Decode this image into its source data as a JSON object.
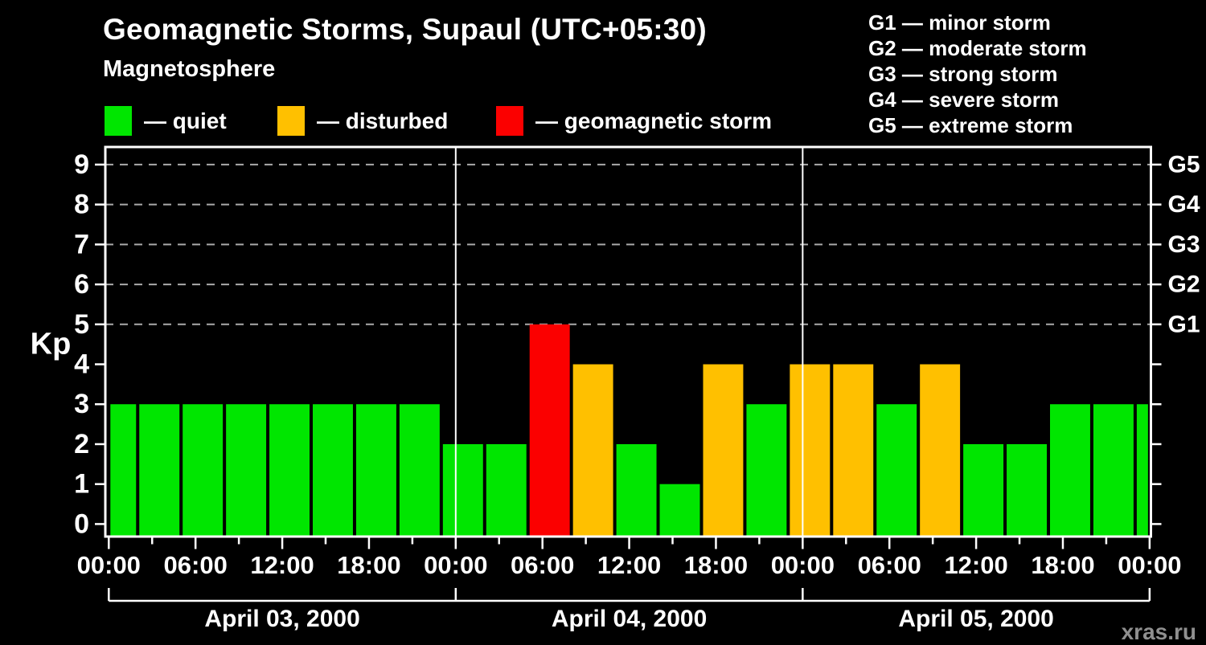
{
  "header": {
    "title": "Geomagnetic Storms, Supaul (UTC+05:30)",
    "subtitle": "Magnetosphere"
  },
  "legend": {
    "items": [
      {
        "key": "quiet",
        "label": "— quiet"
      },
      {
        "key": "disturbed",
        "label": "— disturbed"
      },
      {
        "key": "storm",
        "label": "— geomagnetic storm"
      }
    ]
  },
  "g_scale_legend": {
    "items": [
      "G1 — minor storm",
      "G2 — moderate storm",
      "G3 — strong storm",
      "G4 — severe storm",
      "G5 — extreme storm"
    ]
  },
  "colors": {
    "quiet": "#00e600",
    "disturbed": "#ffc000",
    "storm": "#fb0000",
    "axis": "#ffffff",
    "grid": "#aaaaaa",
    "watermark": "#8f8f8f"
  },
  "watermark": {
    "label": "xras.ru"
  },
  "chart_data": {
    "type": "bar",
    "title": "Geomagnetic Storms, Supaul (UTC+05:30)",
    "ylabel": "Kp",
    "y_ticks": [
      0,
      1,
      2,
      3,
      4,
      5,
      6,
      7,
      8,
      9
    ],
    "y_range_kp": [
      0,
      9
    ],
    "grid_kp_levels": [
      5,
      6,
      7,
      8,
      9
    ],
    "right_axis_labels": [
      {
        "kp": 5,
        "label": "G1"
      },
      {
        "kp": 6,
        "label": "G2"
      },
      {
        "kp": 7,
        "label": "G3"
      },
      {
        "kp": 8,
        "label": "G4"
      },
      {
        "kp": 9,
        "label": "G5"
      }
    ],
    "hours_total": 72,
    "x_tick_step_hours": 3,
    "x_label_step_hours": 6,
    "x_tick_labels_cycle": [
      "00:00",
      "06:00",
      "12:00",
      "18:00"
    ],
    "days": [
      {
        "label": "April 03, 2000",
        "start_hour": 0,
        "end_hour": 24
      },
      {
        "label": "April 04, 2000",
        "start_hour": 24,
        "end_hour": 48
      },
      {
        "label": "April 05, 2000",
        "start_hour": 48,
        "end_hour": 72
      }
    ],
    "day_divider_hours": [
      24,
      48
    ],
    "segments": [
      {
        "start": 0,
        "end": 2,
        "kp": 3,
        "status": "quiet"
      },
      {
        "start": 2,
        "end": 5,
        "kp": 3,
        "status": "quiet"
      },
      {
        "start": 5,
        "end": 8,
        "kp": 3,
        "status": "quiet"
      },
      {
        "start": 8,
        "end": 11,
        "kp": 3,
        "status": "quiet"
      },
      {
        "start": 11,
        "end": 14,
        "kp": 3,
        "status": "quiet"
      },
      {
        "start": 14,
        "end": 17,
        "kp": 3,
        "status": "quiet"
      },
      {
        "start": 17,
        "end": 20,
        "kp": 3,
        "status": "quiet"
      },
      {
        "start": 20,
        "end": 23,
        "kp": 3,
        "status": "quiet"
      },
      {
        "start": 23,
        "end": 26,
        "kp": 2,
        "status": "quiet"
      },
      {
        "start": 26,
        "end": 29,
        "kp": 2,
        "status": "quiet"
      },
      {
        "start": 29,
        "end": 32,
        "kp": 5,
        "status": "storm"
      },
      {
        "start": 32,
        "end": 35,
        "kp": 4,
        "status": "disturbed"
      },
      {
        "start": 35,
        "end": 38,
        "kp": 2,
        "status": "quiet"
      },
      {
        "start": 38,
        "end": 41,
        "kp": 1,
        "status": "quiet"
      },
      {
        "start": 41,
        "end": 44,
        "kp": 4,
        "status": "disturbed"
      },
      {
        "start": 44,
        "end": 47,
        "kp": 3,
        "status": "quiet"
      },
      {
        "start": 47,
        "end": 50,
        "kp": 4,
        "status": "disturbed"
      },
      {
        "start": 50,
        "end": 53,
        "kp": 4,
        "status": "disturbed"
      },
      {
        "start": 53,
        "end": 56,
        "kp": 3,
        "status": "quiet"
      },
      {
        "start": 56,
        "end": 59,
        "kp": 4,
        "status": "disturbed"
      },
      {
        "start": 59,
        "end": 62,
        "kp": 2,
        "status": "quiet"
      },
      {
        "start": 62,
        "end": 65,
        "kp": 2,
        "status": "quiet"
      },
      {
        "start": 65,
        "end": 68,
        "kp": 3,
        "status": "quiet"
      },
      {
        "start": 68,
        "end": 71,
        "kp": 3,
        "status": "quiet"
      },
      {
        "start": 71,
        "end": 72,
        "kp": 3,
        "status": "quiet"
      }
    ]
  }
}
